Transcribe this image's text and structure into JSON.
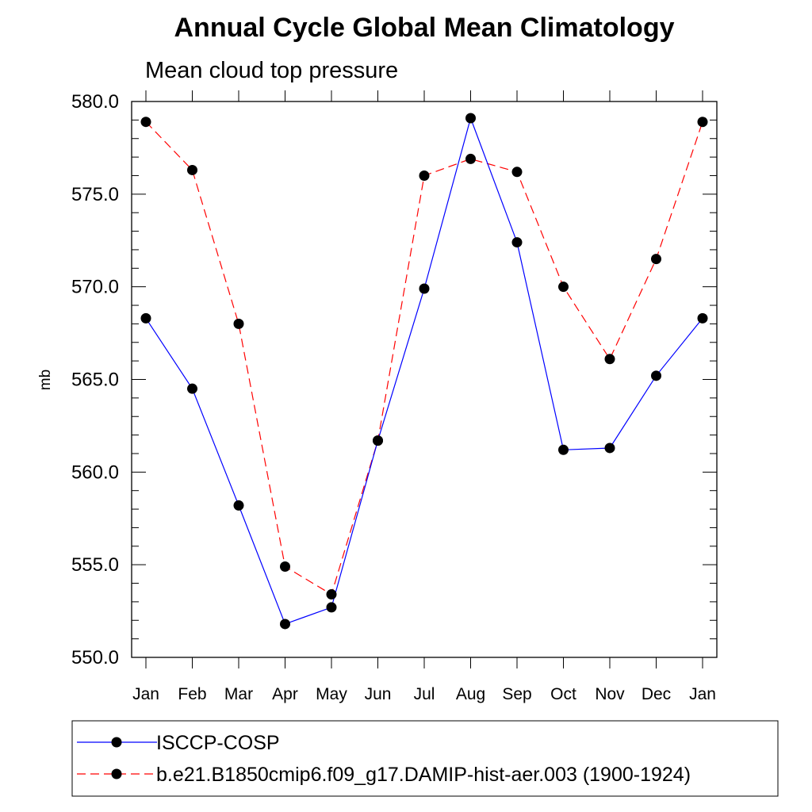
{
  "chart_data": {
    "type": "line",
    "title": "Annual Cycle Global Mean Climatology",
    "subtitle": "Mean cloud top pressure",
    "ylabel": "mb",
    "xlabel": "",
    "categories": [
      "Jan",
      "Feb",
      "Mar",
      "Apr",
      "May",
      "Jun",
      "Jul",
      "Aug",
      "Sep",
      "Oct",
      "Nov",
      "Dec",
      "Jan"
    ],
    "ylim": [
      550.0,
      580.0
    ],
    "yticks": [
      550.0,
      555.0,
      560.0,
      565.0,
      570.0,
      575.0,
      580.0
    ],
    "ytick_labels": [
      "550.0",
      "555.0",
      "560.0",
      "565.0",
      "570.0",
      "575.0",
      "580.0"
    ],
    "grid": false,
    "legend_position": "bottom",
    "series": [
      {
        "name": "ISCCP-COSP",
        "color": "#0000ff",
        "line_style": "solid",
        "marker": "filled-circle",
        "values": [
          568.3,
          564.5,
          558.2,
          551.8,
          552.7,
          561.7,
          569.9,
          579.1,
          572.4,
          561.2,
          561.3,
          565.2,
          568.3
        ]
      },
      {
        "name": "b.e21.B1850cmip6.f09_g17.DAMIP-hist-aer.003 (1900-1924)",
        "color": "#ff0000",
        "line_style": "dashed",
        "marker": "filled-circle",
        "values": [
          578.9,
          576.3,
          568.0,
          554.9,
          553.4,
          561.7,
          576.0,
          576.9,
          576.2,
          570.0,
          566.1,
          571.5,
          578.9
        ]
      }
    ]
  }
}
